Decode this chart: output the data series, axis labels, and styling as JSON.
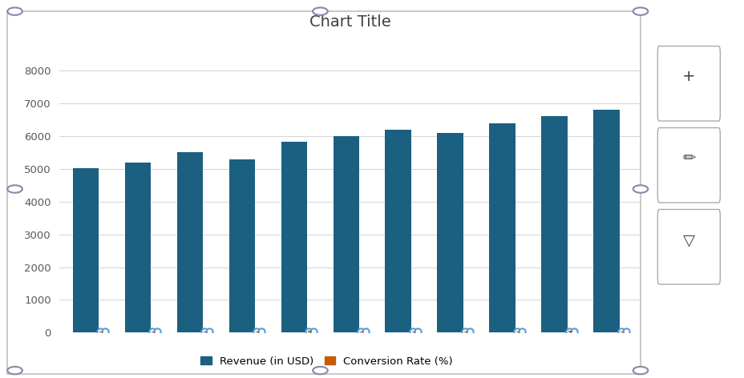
{
  "title": "Chart Title",
  "title_fontsize": 14,
  "n_groups": 11,
  "revenue": [
    5020,
    5200,
    5500,
    5300,
    5830,
    6000,
    6200,
    6100,
    6400,
    6600,
    6800
  ],
  "conversion_rate": [
    0.05,
    0.05,
    0.05,
    0.05,
    0.06,
    0.05,
    0.05,
    0.05,
    0.05,
    0.06,
    0.05
  ],
  "revenue_color": "#1b6080",
  "conversion_color": "#c85a00",
  "ylim": [
    0,
    9000
  ],
  "yticks": [
    0,
    1000,
    2000,
    3000,
    4000,
    5000,
    6000,
    7000,
    8000
  ],
  "bar_width": 0.5,
  "legend_revenue": "Revenue (in USD)",
  "legend_conversion": "Conversion Rate (%)",
  "background_color": "#ffffff",
  "plot_bg_color": "#f5f5f5",
  "grid_color": "#d8d8d8",
  "scatter_color": "#5b9bd5",
  "outer_bg": "#e8e8e8",
  "border_color": "#b0b0b0"
}
